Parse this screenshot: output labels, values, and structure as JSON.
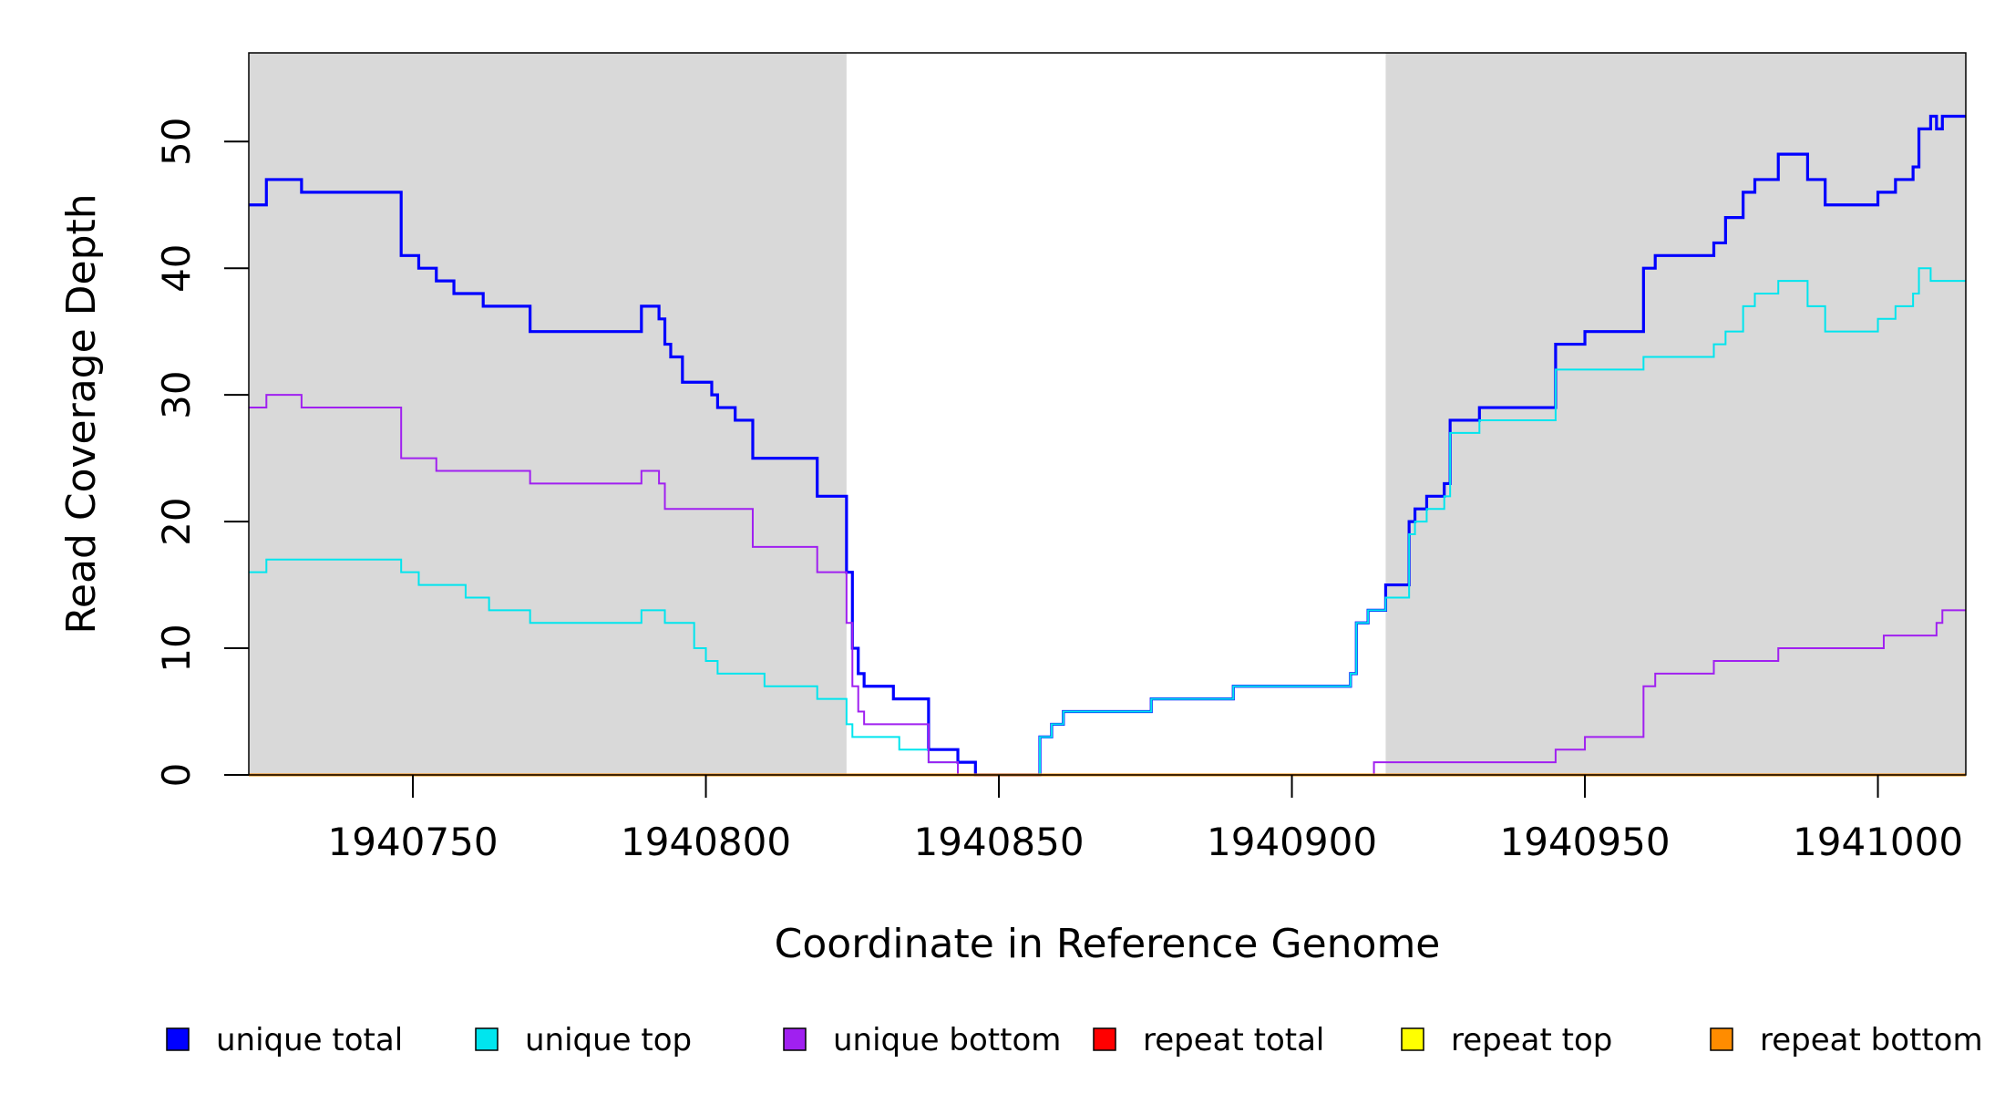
{
  "chart_data": {
    "type": "line",
    "xlabel": "Coordinate in Reference Genome",
    "ylabel": "Read Coverage Depth",
    "xlim": [
      1940722,
      1941015
    ],
    "ylim": [
      0,
      57
    ],
    "x_ticks": [
      1940750,
      1940800,
      1940850,
      1940900,
      1940950,
      1941000
    ],
    "x_tick_labels": [
      "1940750",
      "1940800",
      "1940850",
      "1940900",
      "1940950",
      "1941000"
    ],
    "y_ticks": [
      0,
      10,
      20,
      30,
      40,
      50
    ],
    "y_tick_labels": [
      "0",
      "10",
      "20",
      "30",
      "40",
      "50"
    ],
    "grid": false,
    "step": true,
    "shaded_regions": [
      {
        "x_start": 1940722,
        "x_end": 1940824,
        "color": "#d9d9d9"
      },
      {
        "x_start": 1940916,
        "x_end": 1941015,
        "color": "#d9d9d9"
      }
    ],
    "legend": {
      "position": "bottom",
      "layout": "horizontal"
    },
    "series": [
      {
        "name": "unique total",
        "color": "#0000ff",
        "x": [
          1940722,
          1940725,
          1940731,
          1940748,
          1940751,
          1940754,
          1940757,
          1940762,
          1940770,
          1940789,
          1940792,
          1940793,
          1940794,
          1940796,
          1940801,
          1940802,
          1940805,
          1940808,
          1940810,
          1940819,
          1940824,
          1940825,
          1940826,
          1940827,
          1940828,
          1940832,
          1940838,
          1940843,
          1940846,
          1940857,
          1940859,
          1940861,
          1940864,
          1940876,
          1940890,
          1940910,
          1940911,
          1940913,
          1940916,
          1940920,
          1940921,
          1940923,
          1940926,
          1940927,
          1940932,
          1940945,
          1940950,
          1940954,
          1940960,
          1940962,
          1940972,
          1940974,
          1940977,
          1940979,
          1940983,
          1940988,
          1940991,
          1940993,
          1941000,
          1941003,
          1941006,
          1941007,
          1941009,
          1941010,
          1941011,
          1941015
        ],
        "y": [
          45,
          47,
          46,
          41,
          40,
          39,
          38,
          37,
          35,
          37,
          36,
          34,
          33,
          31,
          30,
          29,
          28,
          25,
          25,
          22,
          16,
          10,
          8,
          7,
          7,
          6,
          2,
          1,
          0,
          3,
          4,
          5,
          5,
          6,
          7,
          8,
          12,
          13,
          15,
          20,
          21,
          22,
          23,
          28,
          29,
          34,
          35,
          35,
          40,
          41,
          42,
          44,
          46,
          47,
          49,
          47,
          45,
          45,
          46,
          47,
          48,
          51,
          52,
          51,
          52,
          52
        ]
      },
      {
        "name": "unique top",
        "color": "#00e5ee",
        "x": [
          1940722,
          1940725,
          1940748,
          1940751,
          1940755,
          1940759,
          1940763,
          1940770,
          1940789,
          1940793,
          1940796,
          1940798,
          1940800,
          1940802,
          1940806,
          1940810,
          1940819,
          1940824,
          1940825,
          1940826,
          1940833,
          1940838,
          1940843,
          1940846,
          1940857,
          1940859,
          1940861,
          1940864,
          1940876,
          1940890,
          1940910,
          1940911,
          1940913,
          1940916,
          1940920,
          1940921,
          1940923,
          1940926,
          1940927,
          1940932,
          1940945,
          1940950,
          1940954,
          1940960,
          1940962,
          1940972,
          1940974,
          1940977,
          1940979,
          1940983,
          1940988,
          1940991,
          1940993,
          1941000,
          1941003,
          1941006,
          1941007,
          1941009,
          1941015
        ],
        "y": [
          16,
          17,
          16,
          15,
          15,
          14,
          13,
          12,
          13,
          12,
          12,
          10,
          9,
          8,
          8,
          7,
          6,
          4,
          3,
          3,
          2,
          1,
          0,
          0,
          3,
          4,
          5,
          5,
          6,
          7,
          8,
          12,
          13,
          14,
          19,
          20,
          21,
          22,
          27,
          28,
          32,
          32,
          32,
          33,
          33,
          34,
          35,
          37,
          38,
          39,
          37,
          35,
          35,
          36,
          37,
          38,
          40,
          39,
          39
        ]
      },
      {
        "name": "unique bottom",
        "color": "#a020f0",
        "x": [
          1940722,
          1940725,
          1940731,
          1940748,
          1940754,
          1940770,
          1940789,
          1940792,
          1940793,
          1940796,
          1940808,
          1940810,
          1940819,
          1940824,
          1940825,
          1940826,
          1940827,
          1940838,
          1940843,
          1940914,
          1940945,
          1940950,
          1940960,
          1940962,
          1940972,
          1940983,
          1941000,
          1941001,
          1941009,
          1941010,
          1941011,
          1941015
        ],
        "y": [
          29,
          30,
          29,
          25,
          24,
          23,
          24,
          23,
          21,
          21,
          18,
          18,
          16,
          12,
          7,
          5,
          4,
          1,
          0,
          1,
          2,
          3,
          7,
          8,
          9,
          10,
          10,
          11,
          11,
          12,
          13,
          13
        ]
      },
      {
        "name": "repeat total",
        "color": "#ff0000",
        "x": [
          1940722,
          1941015
        ],
        "y": [
          0,
          0
        ]
      },
      {
        "name": "repeat top",
        "color": "#ffff00",
        "x": [
          1940722,
          1941015
        ],
        "y": [
          0,
          0
        ]
      },
      {
        "name": "repeat bottom",
        "color": "#ff8c00",
        "x": [
          1940722,
          1941015
        ],
        "y": [
          0,
          0
        ]
      }
    ]
  }
}
